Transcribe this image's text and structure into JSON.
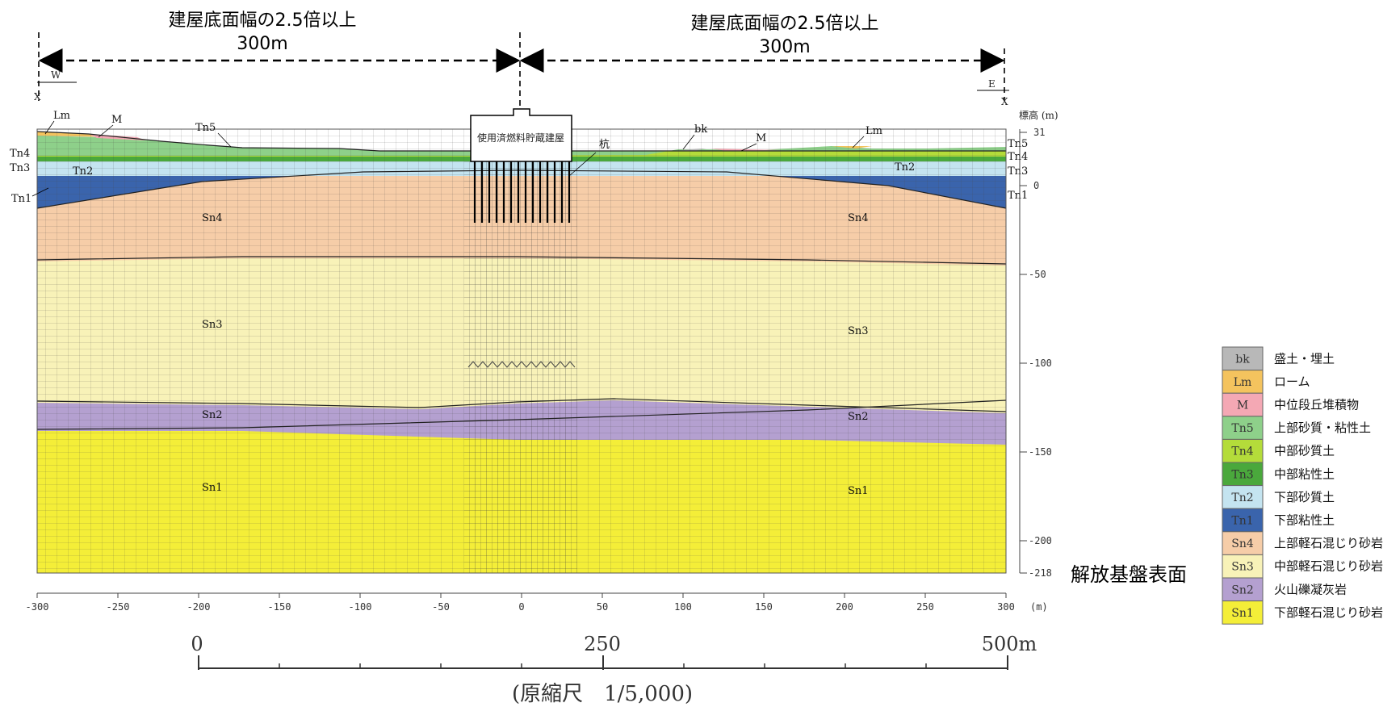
{
  "header": {
    "left_title": "建屋底面幅の2.5倍以上",
    "left_dist": "300m",
    "right_title": "建屋底面幅の2.5倍以上",
    "right_dist": "300m"
  },
  "compass": {
    "west": "W",
    "east": "E",
    "x_left": "X",
    "x_right": "X"
  },
  "building": {
    "label": "使用済燃料貯蔵建屋",
    "pile_label": "杭"
  },
  "section": {
    "top_labels": [
      "Lm",
      "M",
      "Tn5",
      "bk",
      "M",
      "Lm"
    ],
    "left_labels": [
      "Tn4",
      "Tn3",
      "Tn2",
      "Tn1"
    ],
    "right_labels": [
      "Tn5",
      "Tn4",
      "Tn3",
      "Tn2",
      "Tn1"
    ],
    "layer_labels_left": [
      "Sn4",
      "Sn3",
      "Sn2",
      "Sn1"
    ],
    "layer_labels_right": [
      "Sn4",
      "Sn3",
      "Sn2",
      "Sn1"
    ]
  },
  "elevation_axis": {
    "title": "標高 (m)",
    "ticks": [
      "31",
      "0",
      "-50",
      "-100",
      "-150",
      "-200",
      "-218"
    ]
  },
  "horizontal_axis": {
    "ticks": [
      "-300",
      "-250",
      "-200",
      "-150",
      "-100",
      "-50",
      "0",
      "50",
      "100",
      "150",
      "200",
      "250",
      "300"
    ],
    "unit": "(m)"
  },
  "basement_label": "解放基盤表面",
  "scale_bar": {
    "zero": "0",
    "mid": "250",
    "end": "500m",
    "note": "(原縮尺　1/5,000)"
  },
  "legend": [
    {
      "code": "bk",
      "name": "盛土・埋土",
      "color": "#b8b8b8"
    },
    {
      "code": "Lm",
      "name": "ローム",
      "color": "#f4c35e"
    },
    {
      "code": "M",
      "name": "中位段丘堆積物",
      "color": "#f4a8b4"
    },
    {
      "code": "Tn5",
      "name": "上部砂質・粘性土",
      "color": "#8ed08a"
    },
    {
      "code": "Tn4",
      "name": "中部砂質土",
      "color": "#b4dc3a"
    },
    {
      "code": "Tn3",
      "name": "中部粘性土",
      "color": "#4aa83c"
    },
    {
      "code": "Tn2",
      "name": "下部砂質土",
      "color": "#c4e4f0"
    },
    {
      "code": "Tn1",
      "name": "下部粘性土",
      "color": "#3a64ac"
    },
    {
      "code": "Sn4",
      "name": "上部軽石混じり砂岩",
      "color": "#f6cda8"
    },
    {
      "code": "Sn3",
      "name": "中部軽石混じり砂岩",
      "color": "#f8f2b8"
    },
    {
      "code": "Sn2",
      "name": "火山礫凝灰岩",
      "color": "#b4a0d0"
    },
    {
      "code": "Sn1",
      "name": "下部軽石混じり砂岩",
      "color": "#f4ee38"
    }
  ]
}
